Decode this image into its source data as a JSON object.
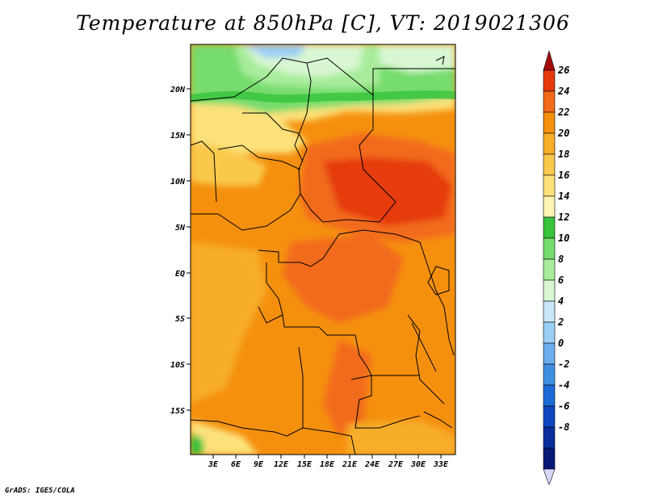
{
  "title": "Temperature at 850hPa [C], VT: 2019021306",
  "credit": "GrADS: IGES/COLA",
  "map": {
    "latitude_labels": [
      "20N",
      "15N",
      "10N",
      "5N",
      "EQ",
      "5S",
      "10S",
      "15S"
    ],
    "longitude_labels": [
      "3E",
      "6E",
      "9E",
      "12E",
      "15E",
      "18E",
      "21E",
      "24E",
      "27E",
      "30E",
      "33E"
    ]
  },
  "colorbar": {
    "labels": [
      "26",
      "24",
      "22",
      "20",
      "18",
      "16",
      "14",
      "12",
      "10",
      "8",
      "6",
      "4",
      "2",
      "0",
      "-2",
      "-4",
      "-6",
      "-8"
    ],
    "colors": [
      "#a50a0a",
      "#e53a0d",
      "#f26b1b",
      "#f5900f",
      "#f7ad29",
      "#f9c94c",
      "#fce17a",
      "#fef4b3",
      "#37c33c",
      "#76dc6d",
      "#a8ec9b",
      "#d8f7d2",
      "#c8e6f8",
      "#9bcef4",
      "#6bafec",
      "#3f8fe1",
      "#1d6bd6",
      "#0e47c0",
      "#0b2f9c",
      "#071875",
      "#d9d9ff"
    ]
  }
}
